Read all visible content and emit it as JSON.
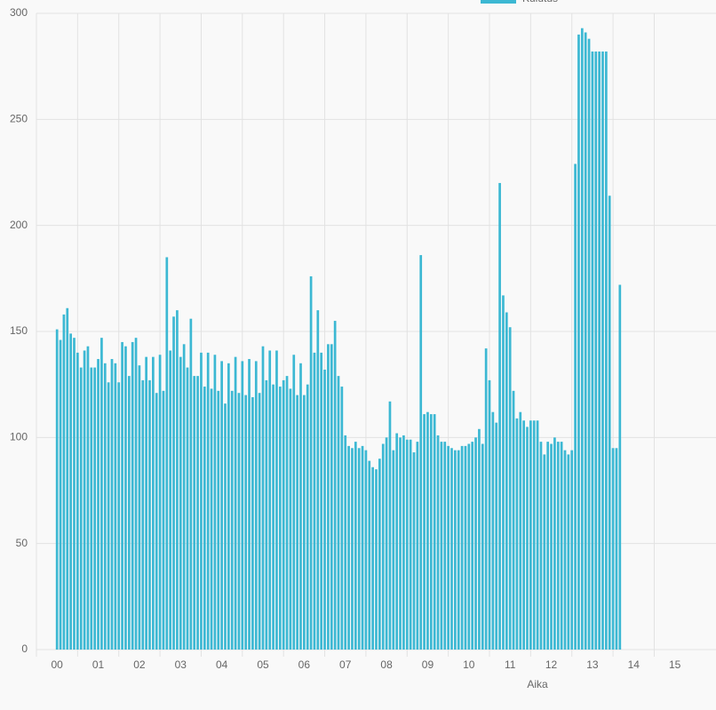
{
  "chart_data": {
    "type": "bar",
    "xlabel": "Aika",
    "x": [
      0,
      5,
      10,
      15,
      20,
      25,
      30,
      35,
      40,
      45,
      50,
      55,
      60,
      65,
      70,
      75,
      80,
      85,
      90,
      95,
      100,
      105,
      110,
      115,
      120,
      125,
      130,
      135,
      140,
      145,
      150,
      155,
      160,
      165,
      170,
      175,
      180,
      185,
      190,
      195,
      200,
      205,
      210,
      215,
      220,
      225,
      230,
      235,
      240,
      245,
      250,
      255,
      260,
      265,
      270,
      275,
      280,
      285,
      290,
      295,
      300,
      305,
      310,
      315,
      320,
      325,
      330,
      335,
      340,
      345,
      350,
      355,
      360,
      365,
      370,
      375,
      380,
      385,
      390,
      395,
      400,
      405,
      410,
      415,
      420,
      425,
      430,
      435,
      440,
      445,
      450,
      455,
      460,
      465,
      470,
      475,
      480,
      485,
      490,
      495,
      500,
      505,
      510,
      515,
      520,
      525,
      530,
      535,
      540,
      545,
      550,
      555,
      560,
      565,
      570,
      575,
      580,
      585,
      590,
      595,
      600,
      605,
      610,
      615,
      620,
      625,
      630,
      635,
      640,
      645,
      650,
      655,
      660,
      665,
      670,
      675,
      680,
      685,
      690,
      695,
      700,
      705,
      710,
      715,
      720,
      725,
      730,
      735,
      740,
      745,
      750,
      755,
      760,
      765,
      770,
      775,
      780,
      785,
      790,
      795,
      800,
      805,
      810,
      815,
      820
    ],
    "series": [
      {
        "name": "Kulutus",
        "color": "#3cb8d3",
        "values": [
          151,
          146,
          158,
          161,
          149,
          147,
          140,
          133,
          141,
          143,
          133,
          133,
          137,
          147,
          135,
          126,
          137,
          135,
          126,
          145,
          143,
          129,
          145,
          147,
          134,
          127,
          138,
          127,
          138,
          121,
          139,
          122,
          185,
          141,
          157,
          160,
          138,
          144,
          133,
          156,
          129,
          129,
          140,
          124,
          140,
          123,
          139,
          122,
          136,
          116,
          135,
          122,
          138,
          121,
          136,
          120,
          137,
          119,
          136,
          121,
          143,
          127,
          141,
          125,
          141,
          124,
          127,
          129,
          123,
          139,
          120,
          135,
          120,
          125,
          176,
          140,
          160,
          140,
          132,
          144,
          144,
          155,
          129,
          124,
          101,
          96,
          95,
          98,
          95,
          96,
          94,
          89,
          86,
          85,
          90,
          97,
          100,
          117,
          94,
          102,
          100,
          101,
          99,
          99,
          93,
          98,
          186,
          111,
          112,
          111,
          111,
          101,
          98,
          98,
          96,
          95,
          94,
          94,
          96,
          96,
          97,
          98,
          100,
          104,
          97,
          142,
          127,
          112,
          107,
          220,
          167,
          159,
          152,
          122,
          109,
          112,
          108,
          105,
          108,
          108,
          108,
          98,
          92,
          98,
          97,
          100,
          98,
          98,
          94,
          92,
          94,
          229,
          290,
          293,
          291,
          288,
          282,
          282,
          282,
          282,
          282,
          214,
          95,
          95,
          172
        ]
      }
    ],
    "xlim": [
      -30,
      960
    ],
    "xticks": [
      {
        "value": 0,
        "label": "00"
      },
      {
        "value": 60,
        "label": "01"
      },
      {
        "value": 120,
        "label": "02"
      },
      {
        "value": 180,
        "label": "03"
      },
      {
        "value": 240,
        "label": "04"
      },
      {
        "value": 300,
        "label": "05"
      },
      {
        "value": 360,
        "label": "06"
      },
      {
        "value": 420,
        "label": "07"
      },
      {
        "value": 480,
        "label": "08"
      },
      {
        "value": 540,
        "label": "09"
      },
      {
        "value": 600,
        "label": "10"
      },
      {
        "value": 660,
        "label": "11"
      },
      {
        "value": 720,
        "label": "12"
      },
      {
        "value": 780,
        "label": "13"
      },
      {
        "value": 840,
        "label": "14"
      },
      {
        "value": 900,
        "label": "15"
      }
    ],
    "ylim": [
      0,
      300
    ],
    "yticks": [
      0,
      50,
      100,
      150,
      200,
      250,
      300
    ],
    "grid": true
  }
}
